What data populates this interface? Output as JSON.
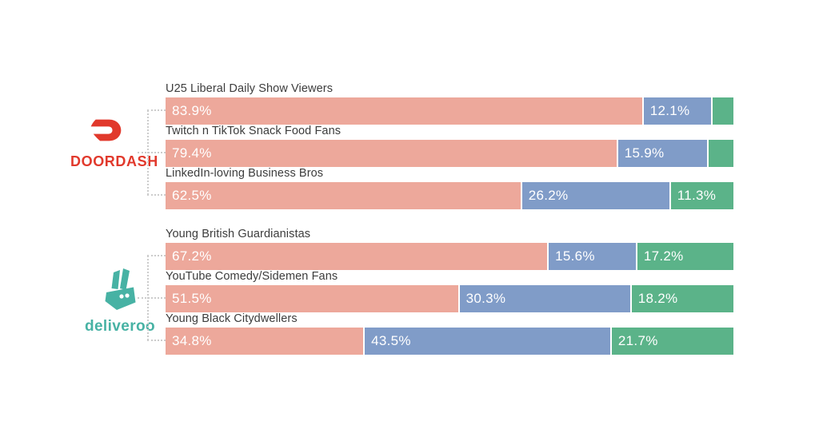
{
  "chart_data": {
    "type": "bar",
    "orientation": "horizontal",
    "stacked": true,
    "unit": "percent",
    "xlim": [
      0,
      100
    ],
    "grid": false,
    "legend": false,
    "segment_colors": [
      "#EDA89B",
      "#809CC8",
      "#5BB389"
    ],
    "groups": [
      {
        "brand": "DOORDASH",
        "rows": [
          {
            "label": "U25 Liberal Daily Show Viewers",
            "values": [
              83.9,
              12.1,
              4.0
            ],
            "value_labels": [
              "83.9%",
              "12.1%",
              ""
            ]
          },
          {
            "label": "Twitch n TikTok Snack Food Fans",
            "values": [
              79.4,
              15.9,
              4.7
            ],
            "value_labels": [
              "79.4%",
              "15.9%",
              ""
            ]
          },
          {
            "label": "LinkedIn-loving Business Bros",
            "values": [
              62.5,
              26.2,
              11.3
            ],
            "value_labels": [
              "62.5%",
              "26.2%",
              "11.3%"
            ]
          }
        ]
      },
      {
        "brand": "deliveroo",
        "rows": [
          {
            "label": "Young British Guardianistas",
            "values": [
              67.2,
              15.6,
              17.2
            ],
            "value_labels": [
              "67.2%",
              "15.6%",
              "17.2%"
            ]
          },
          {
            "label": "YouTube Comedy/Sidemen Fans",
            "values": [
              51.5,
              30.3,
              18.2
            ],
            "value_labels": [
              "51.5%",
              "30.3%",
              "18.2%"
            ]
          },
          {
            "label": "Young Black Citydwellers",
            "values": [
              34.8,
              43.5,
              21.7
            ],
            "value_labels": [
              "34.8%",
              "43.5%",
              "21.7%"
            ]
          }
        ]
      }
    ]
  },
  "logos": {
    "doordash": {
      "wordmark": "DOORDASH",
      "color": "#E1392C"
    },
    "deliveroo": {
      "wordmark": "deliveroo",
      "color": "#47B2A4"
    }
  }
}
